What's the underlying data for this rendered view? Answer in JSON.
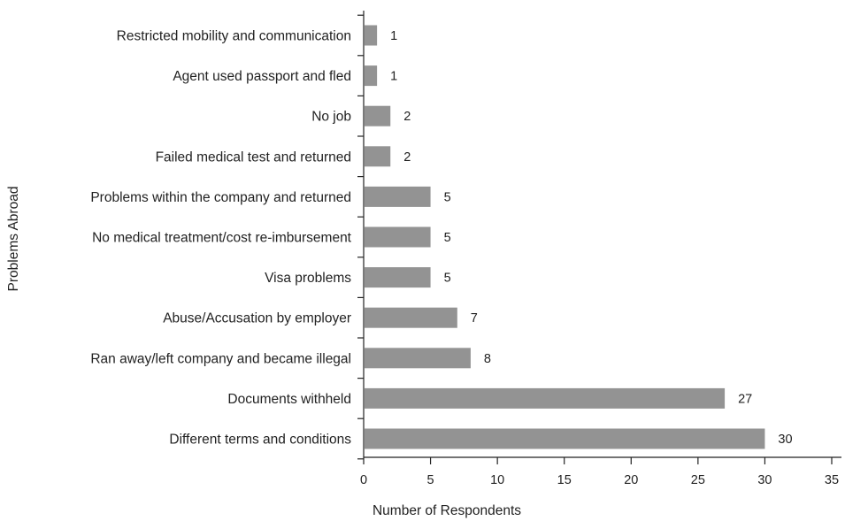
{
  "chart_data": {
    "type": "bar",
    "orientation": "horizontal",
    "title": "",
    "xlabel": "Number of Respondents",
    "ylabel": "Problems Abroad",
    "categories": [
      "Restricted mobility and communication",
      "Agent used passport and fled",
      "No job",
      "Failed medical test and returned",
      "Problems within the company and returned",
      "No medical treatment/cost re-imbursement",
      "Visa problems",
      "Abuse/Accusation by employer",
      "Ran away/left company and became illegal",
      "Documents withheld",
      "Different terms and conditions"
    ],
    "values": [
      1,
      1,
      2,
      2,
      5,
      5,
      5,
      7,
      8,
      27,
      30
    ],
    "data_labels": [
      "1",
      "1",
      "2",
      "2",
      "5",
      "5",
      "5",
      "7",
      "8",
      "27",
      "30"
    ],
    "xlim": [
      0,
      35
    ],
    "xticks": [
      "0",
      "5",
      "10",
      "15",
      "20",
      "25",
      "30",
      "35"
    ],
    "grid": false,
    "legend": "none",
    "bar_color": "#939393"
  }
}
